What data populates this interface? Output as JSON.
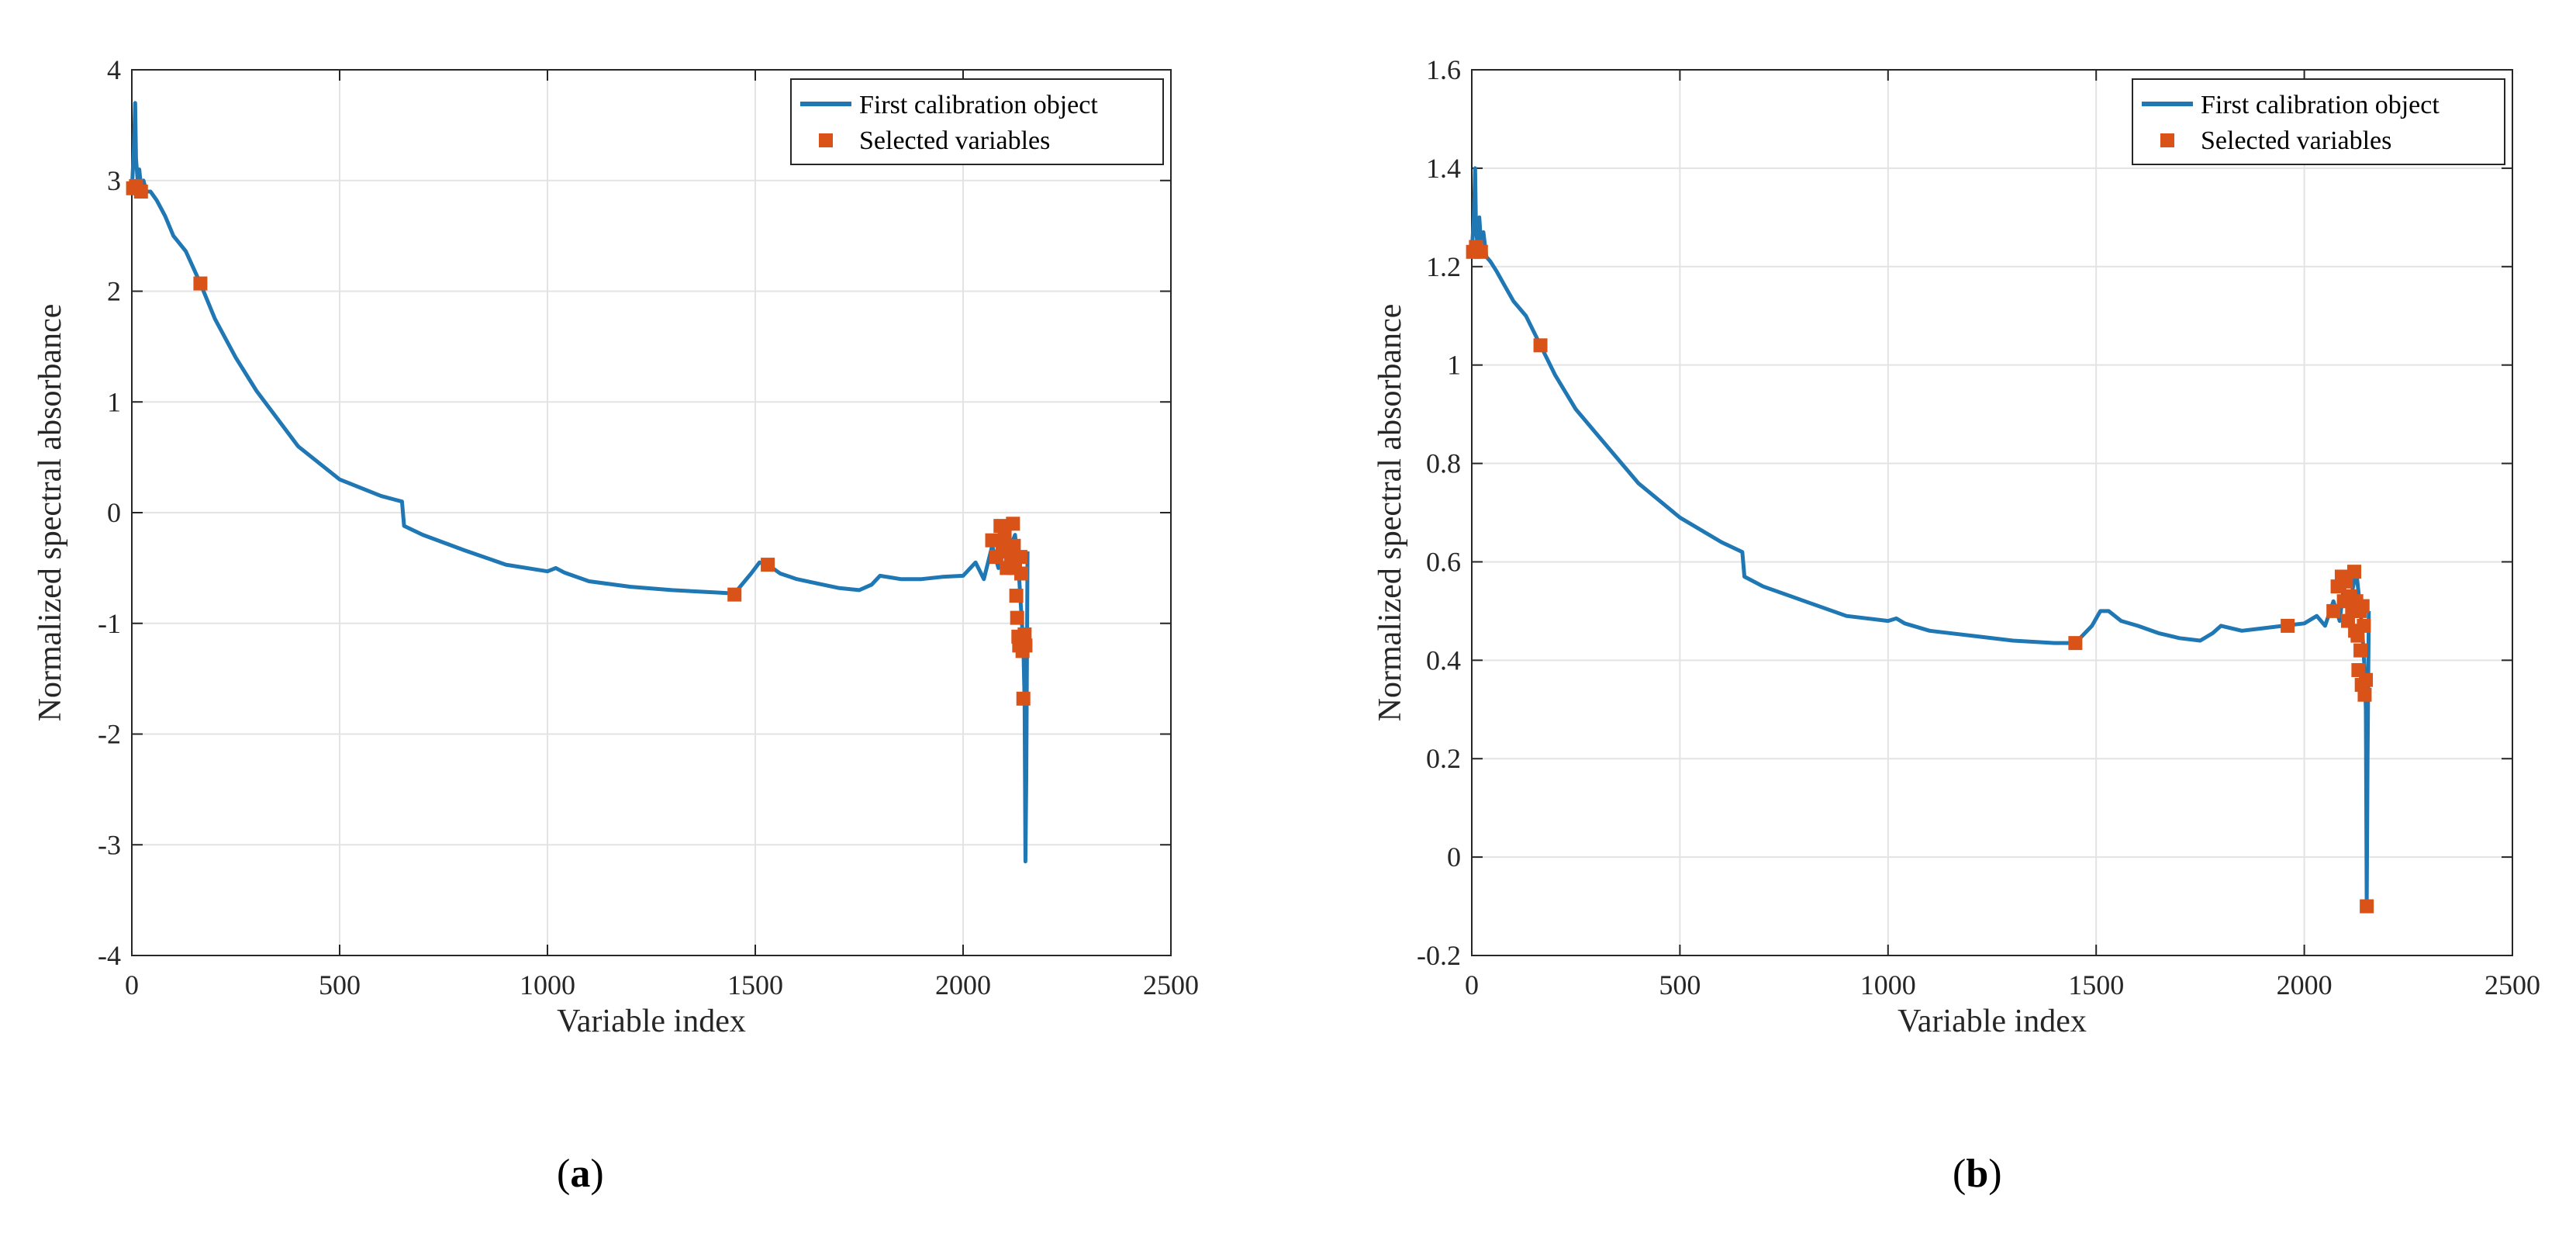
{
  "chart_data": [
    {
      "type": "line",
      "panel": "a",
      "xlabel": "Variable index",
      "ylabel": "Normalized spectral absorbance",
      "xlim": [
        0,
        2500
      ],
      "ylim": [
        -4,
        4
      ],
      "xticks": [
        0,
        500,
        1000,
        1500,
        2000,
        2500
      ],
      "yticks": [
        -4,
        -3,
        -2,
        -1,
        0,
        1,
        2,
        3,
        4
      ],
      "grid": true,
      "legend": {
        "position": "top-right",
        "entries": [
          "First calibration object",
          "Selected variables"
        ]
      },
      "series": [
        {
          "name": "First calibration object",
          "color": "#1f77b4",
          "x": [
            0,
            5,
            8,
            10,
            14,
            18,
            22,
            28,
            35,
            45,
            60,
            80,
            100,
            130,
            165,
            200,
            250,
            300,
            400,
            500,
            600,
            650,
            655,
            700,
            800,
            900,
            1000,
            1020,
            1040,
            1100,
            1200,
            1300,
            1400,
            1450,
            1490,
            1510,
            1530,
            1560,
            1600,
            1650,
            1700,
            1750,
            1780,
            1800,
            1850,
            1900,
            1950,
            2000,
            2030,
            2050,
            2070,
            2085,
            2095,
            2105,
            2115,
            2125,
            2135,
            2140,
            2145,
            2148,
            2150,
            2152,
            2155
          ],
          "y": [
            2.9,
            3.3,
            3.7,
            3.2,
            3.0,
            3.1,
            2.95,
            3.0,
            2.9,
            2.9,
            2.82,
            2.68,
            2.5,
            2.36,
            2.07,
            1.75,
            1.4,
            1.1,
            0.6,
            0.3,
            0.15,
            0.1,
            -0.12,
            -0.2,
            -0.34,
            -0.47,
            -0.53,
            -0.5,
            -0.54,
            -0.62,
            -0.67,
            -0.7,
            -0.72,
            -0.73,
            -0.55,
            -0.45,
            -0.47,
            -0.55,
            -0.6,
            -0.64,
            -0.68,
            -0.7,
            -0.65,
            -0.57,
            -0.6,
            -0.6,
            -0.58,
            -0.57,
            -0.45,
            -0.6,
            -0.3,
            -0.5,
            -0.2,
            -0.45,
            -0.3,
            -0.2,
            -0.6,
            -0.9,
            -1.2,
            -1.7,
            -3.15,
            -2.4,
            -0.35
          ]
        },
        {
          "name": "Selected variables",
          "color": "#d95319",
          "marker": "square",
          "x": [
            3,
            10,
            22,
            165,
            1450,
            1530,
            2070,
            2080,
            2090,
            2095,
            2100,
            2105,
            2110,
            2115,
            2120,
            2122,
            2125,
            2128,
            2130,
            2133,
            2135,
            2138,
            2140,
            2143,
            2145,
            2148,
            2150
          ],
          "y": [
            2.93,
            2.95,
            2.9,
            2.07,
            -0.74,
            -0.47,
            -0.25,
            -0.4,
            -0.12,
            -0.3,
            -0.2,
            -0.5,
            -0.35,
            -0.4,
            -0.1,
            -0.3,
            -0.5,
            -0.75,
            -0.95,
            -1.12,
            -1.2,
            -0.4,
            -0.55,
            -1.25,
            -1.68,
            -1.1,
            -1.2
          ]
        }
      ]
    },
    {
      "type": "line",
      "panel": "b",
      "xlabel": "Variable index",
      "ylabel": "Normalized spectral absorbance",
      "xlim": [
        0,
        2500
      ],
      "ylim": [
        -0.2,
        1.6
      ],
      "xticks": [
        0,
        500,
        1000,
        1500,
        2000,
        2500
      ],
      "yticks": [
        -0.2,
        0,
        0.2,
        0.4,
        0.6,
        0.8,
        1,
        1.2,
        1.4,
        1.6
      ],
      "grid": true,
      "legend": {
        "position": "top-right",
        "entries": [
          "First calibration object",
          "Selected variables"
        ]
      },
      "series": [
        {
          "name": "First calibration object",
          "color": "#1f77b4",
          "x": [
            0,
            5,
            8,
            10,
            14,
            18,
            22,
            28,
            35,
            45,
            60,
            80,
            100,
            130,
            165,
            200,
            250,
            300,
            400,
            500,
            600,
            650,
            655,
            700,
            800,
            900,
            1000,
            1020,
            1040,
            1100,
            1200,
            1300,
            1400,
            1450,
            1490,
            1510,
            1530,
            1560,
            1600,
            1650,
            1700,
            1750,
            1780,
            1800,
            1850,
            1900,
            1950,
            2000,
            2030,
            2050,
            2070,
            2085,
            2095,
            2105,
            2115,
            2125,
            2135,
            2140,
            2145,
            2148,
            2150,
            2152,
            2155
          ],
          "y": [
            1.23,
            1.3,
            1.4,
            1.28,
            1.24,
            1.3,
            1.25,
            1.27,
            1.22,
            1.21,
            1.19,
            1.16,
            1.13,
            1.1,
            1.04,
            0.98,
            0.91,
            0.86,
            0.76,
            0.69,
            0.64,
            0.62,
            0.57,
            0.55,
            0.52,
            0.49,
            0.48,
            0.485,
            0.475,
            0.46,
            0.45,
            0.44,
            0.435,
            0.435,
            0.47,
            0.5,
            0.5,
            0.48,
            0.47,
            0.455,
            0.445,
            0.44,
            0.455,
            0.47,
            0.46,
            0.465,
            0.47,
            0.475,
            0.49,
            0.47,
            0.52,
            0.48,
            0.55,
            0.5,
            0.54,
            0.58,
            0.5,
            0.45,
            0.38,
            0.3,
            -0.1,
            0.2,
            0.5
          ]
        },
        {
          "name": "Selected variables",
          "color": "#d95319",
          "marker": "square",
          "x": [
            3,
            10,
            22,
            165,
            1450,
            1960,
            2070,
            2080,
            2090,
            2095,
            2100,
            2105,
            2110,
            2115,
            2120,
            2122,
            2125,
            2128,
            2130,
            2133,
            2135,
            2138,
            2140,
            2143,
            2145,
            2148,
            2150
          ],
          "y": [
            1.23,
            1.24,
            1.23,
            1.04,
            0.435,
            0.47,
            0.5,
            0.55,
            0.57,
            0.52,
            0.56,
            0.48,
            0.53,
            0.5,
            0.58,
            0.46,
            0.52,
            0.45,
            0.38,
            0.5,
            0.42,
            0.35,
            0.51,
            0.47,
            0.33,
            0.36,
            -0.1
          ]
        }
      ]
    }
  ],
  "captions": {
    "a": {
      "open": "(",
      "letter": "a",
      "close": ")"
    },
    "b": {
      "open": "(",
      "letter": "b",
      "close": ")"
    }
  }
}
